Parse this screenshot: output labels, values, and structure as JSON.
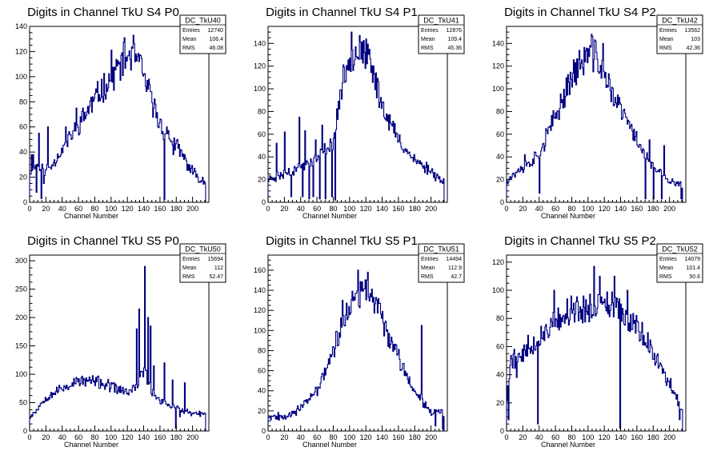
{
  "chart_data": [
    {
      "type": "histogram",
      "title": "Digits in Channel TkU S4 P0",
      "xlabel": "Channel Number",
      "ylabel": "",
      "xlim": [
        0,
        220
      ],
      "ylim": [
        0,
        140
      ],
      "xticks": [
        0,
        20,
        40,
        60,
        80,
        100,
        120,
        140,
        160,
        180,
        200
      ],
      "yticks": [
        0,
        20,
        40,
        60,
        80,
        100,
        120,
        140
      ],
      "stats": {
        "name": "DC_TkU40",
        "rows": [
          [
            "Entries",
            "12740"
          ],
          [
            "Mean",
            "106.4"
          ],
          [
            "RMS",
            "46.08"
          ]
        ]
      },
      "color": "#000080",
      "seed": 11,
      "profile": [
        [
          0,
          25
        ],
        [
          10,
          30
        ],
        [
          20,
          25
        ],
        [
          30,
          32
        ],
        [
          40,
          42
        ],
        [
          60,
          62
        ],
        [
          80,
          82
        ],
        [
          100,
          100
        ],
        [
          120,
          116
        ],
        [
          130,
          118
        ],
        [
          140,
          100
        ],
        [
          160,
          62
        ],
        [
          180,
          45
        ],
        [
          200,
          24
        ],
        [
          215,
          16
        ]
      ],
      "spikes": [
        [
          2,
          38
        ],
        [
          4,
          38
        ],
        [
          8,
          8
        ],
        [
          11,
          55
        ],
        [
          14,
          3
        ],
        [
          17,
          15
        ],
        [
          22,
          60
        ],
        [
          44,
          60
        ],
        [
          57,
          75
        ],
        [
          100,
          121
        ],
        [
          116,
          131
        ],
        [
          127,
          133
        ],
        [
          130,
          118
        ],
        [
          165,
          2
        ],
        [
          170,
          57
        ],
        [
          176,
          38
        ]
      ]
    },
    {
      "type": "histogram",
      "title": "Digits in Channel TkU S4 P1",
      "xlabel": "Channel Number",
      "ylabel": "",
      "xlim": [
        0,
        220
      ],
      "ylim": [
        0,
        155
      ],
      "xticks": [
        0,
        20,
        40,
        60,
        80,
        100,
        120,
        140,
        160,
        180,
        200
      ],
      "yticks": [
        0,
        20,
        40,
        60,
        80,
        100,
        120,
        140
      ],
      "stats": {
        "name": "DC_TkU41",
        "rows": [
          [
            "Entries",
            "12876"
          ],
          [
            "Mean",
            "109.4"
          ],
          [
            "RMS",
            "45.36"
          ]
        ]
      },
      "color": "#000080",
      "seed": 23,
      "profile": [
        [
          0,
          20
        ],
        [
          20,
          25
        ],
        [
          40,
          32
        ],
        [
          60,
          38
        ],
        [
          80,
          55
        ],
        [
          90,
          100
        ],
        [
          100,
          128
        ],
        [
          110,
          135
        ],
        [
          120,
          130
        ],
        [
          130,
          112
        ],
        [
          140,
          86
        ],
        [
          160,
          55
        ],
        [
          180,
          37
        ],
        [
          200,
          28
        ],
        [
          215,
          18
        ]
      ],
      "spikes": [
        [
          10,
          52
        ],
        [
          20,
          62
        ],
        [
          28,
          5
        ],
        [
          38,
          75
        ],
        [
          42,
          5
        ],
        [
          45,
          63
        ],
        [
          50,
          3
        ],
        [
          55,
          5
        ],
        [
          58,
          55
        ],
        [
          63,
          3
        ],
        [
          66,
          68
        ],
        [
          70,
          3
        ],
        [
          78,
          5
        ],
        [
          82,
          2
        ],
        [
          102,
          150
        ],
        [
          112,
          147
        ]
      ]
    },
    {
      "type": "histogram",
      "title": "Digits in Channel TkU S4 P2",
      "xlabel": "Channel Number",
      "ylabel": "",
      "xlim": [
        0,
        220
      ],
      "ylim": [
        0,
        155
      ],
      "xticks": [
        0,
        20,
        40,
        60,
        80,
        100,
        120,
        140,
        160,
        180,
        200
      ],
      "yticks": [
        0,
        20,
        40,
        60,
        80,
        100,
        120,
        140
      ],
      "stats": {
        "name": "DC_TkU42",
        "rows": [
          [
            "Entries",
            "13562"
          ],
          [
            "Mean",
            "103"
          ],
          [
            "RMS",
            "42.36"
          ]
        ]
      },
      "color": "#000080",
      "seed": 37,
      "profile": [
        [
          0,
          20
        ],
        [
          20,
          30
        ],
        [
          40,
          42
        ],
        [
          60,
          75
        ],
        [
          80,
          112
        ],
        [
          100,
          130
        ],
        [
          110,
          130
        ],
        [
          120,
          110
        ],
        [
          140,
          82
        ],
        [
          160,
          55
        ],
        [
          180,
          30
        ],
        [
          200,
          18
        ],
        [
          215,
          15
        ]
      ],
      "spikes": [
        [
          22,
          42
        ],
        [
          40,
          8
        ],
        [
          48,
          65
        ],
        [
          104,
          148
        ],
        [
          118,
          140
        ],
        [
          146,
          75
        ],
        [
          170,
          3
        ],
        [
          175,
          55
        ],
        [
          180,
          3
        ],
        [
          190,
          3
        ],
        [
          193,
          50
        ],
        [
          214,
          3
        ]
      ]
    },
    {
      "type": "histogram",
      "title": "Digits in Channel TkU S5 P0",
      "xlabel": "Channel Number",
      "ylabel": "",
      "xlim": [
        0,
        220
      ],
      "ylim": [
        0,
        310
      ],
      "xticks": [
        0,
        20,
        40,
        60,
        80,
        100,
        120,
        140,
        160,
        180,
        200
      ],
      "yticks": [
        0,
        50,
        100,
        150,
        200,
        250,
        300
      ],
      "stats": {
        "name": "DC_TkU50",
        "rows": [
          [
            "Entries",
            "15694"
          ],
          [
            "Mean",
            "112"
          ],
          [
            "RMS",
            "52.47"
          ]
        ]
      },
      "color": "#000080",
      "seed": 53,
      "profile": [
        [
          0,
          25
        ],
        [
          10,
          40
        ],
        [
          20,
          60
        ],
        [
          40,
          75
        ],
        [
          60,
          88
        ],
        [
          80,
          88
        ],
        [
          100,
          78
        ],
        [
          120,
          68
        ],
        [
          130,
          75
        ],
        [
          140,
          110
        ],
        [
          150,
          70
        ],
        [
          160,
          55
        ],
        [
          180,
          40
        ],
        [
          200,
          30
        ],
        [
          215,
          30
        ]
      ],
      "spikes": [
        [
          131,
          180
        ],
        [
          134,
          215
        ],
        [
          138,
          105
        ],
        [
          141,
          290
        ],
        [
          145,
          200
        ],
        [
          148,
          185
        ],
        [
          152,
          115
        ],
        [
          165,
          120
        ],
        [
          175,
          90
        ],
        [
          179,
          5
        ],
        [
          184,
          25
        ],
        [
          190,
          85
        ]
      ]
    },
    {
      "type": "histogram",
      "title": "Digits in Channel TkU S5 P1",
      "xlabel": "Channel Number",
      "ylabel": "",
      "xlim": [
        0,
        220
      ],
      "ylim": [
        0,
        175
      ],
      "xticks": [
        0,
        20,
        40,
        60,
        80,
        100,
        120,
        140,
        160,
        180,
        200
      ],
      "yticks": [
        0,
        20,
        40,
        60,
        80,
        100,
        120,
        140,
        160
      ],
      "stats": {
        "name": "DC_TkU51",
        "rows": [
          [
            "Entries",
            "14494"
          ],
          [
            "Mean",
            "112.9"
          ],
          [
            "RMS",
            "42.7"
          ]
        ]
      },
      "color": "#000080",
      "seed": 67,
      "profile": [
        [
          0,
          15
        ],
        [
          20,
          15
        ],
        [
          40,
          22
        ],
        [
          60,
          40
        ],
        [
          80,
          80
        ],
        [
          100,
          125
        ],
        [
          120,
          140
        ],
        [
          130,
          132
        ],
        [
          140,
          112
        ],
        [
          160,
          72
        ],
        [
          180,
          40
        ],
        [
          200,
          20
        ],
        [
          215,
          18
        ]
      ],
      "spikes": [
        [
          91,
          130
        ],
        [
          110,
          160
        ],
        [
          122,
          158
        ],
        [
          188,
          105
        ],
        [
          205,
          5
        ],
        [
          214,
          2
        ]
      ]
    },
    {
      "type": "histogram",
      "title": "Digits in Channel TkU S5 P2",
      "xlabel": "Channel Number",
      "ylabel": "",
      "xlim": [
        0,
        220
      ],
      "ylim": [
        0,
        125
      ],
      "xticks": [
        0,
        20,
        40,
        60,
        80,
        100,
        120,
        140,
        160,
        180,
        200
      ],
      "yticks": [
        0,
        20,
        40,
        60,
        80,
        100,
        120
      ],
      "stats": {
        "name": "DC_TkU52",
        "rows": [
          [
            "Entries",
            "14079"
          ],
          [
            "Mean",
            "101.4"
          ],
          [
            "RMS",
            "50.6"
          ]
        ]
      },
      "color": "#000080",
      "seed": 79,
      "profile": [
        [
          0,
          20
        ],
        [
          5,
          50
        ],
        [
          20,
          55
        ],
        [
          40,
          65
        ],
        [
          60,
          80
        ],
        [
          80,
          85
        ],
        [
          100,
          88
        ],
        [
          120,
          90
        ],
        [
          140,
          85
        ],
        [
          160,
          75
        ],
        [
          180,
          55
        ],
        [
          200,
          35
        ],
        [
          215,
          15
        ]
      ],
      "spikes": [
        [
          2,
          8
        ],
        [
          12,
          38
        ],
        [
          26,
          68
        ],
        [
          38,
          5
        ],
        [
          58,
          100
        ],
        [
          107,
          117
        ],
        [
          114,
          110
        ],
        [
          132,
          110
        ],
        [
          139,
          2
        ],
        [
          148,
          100
        ],
        [
          212,
          8
        ]
      ]
    }
  ]
}
